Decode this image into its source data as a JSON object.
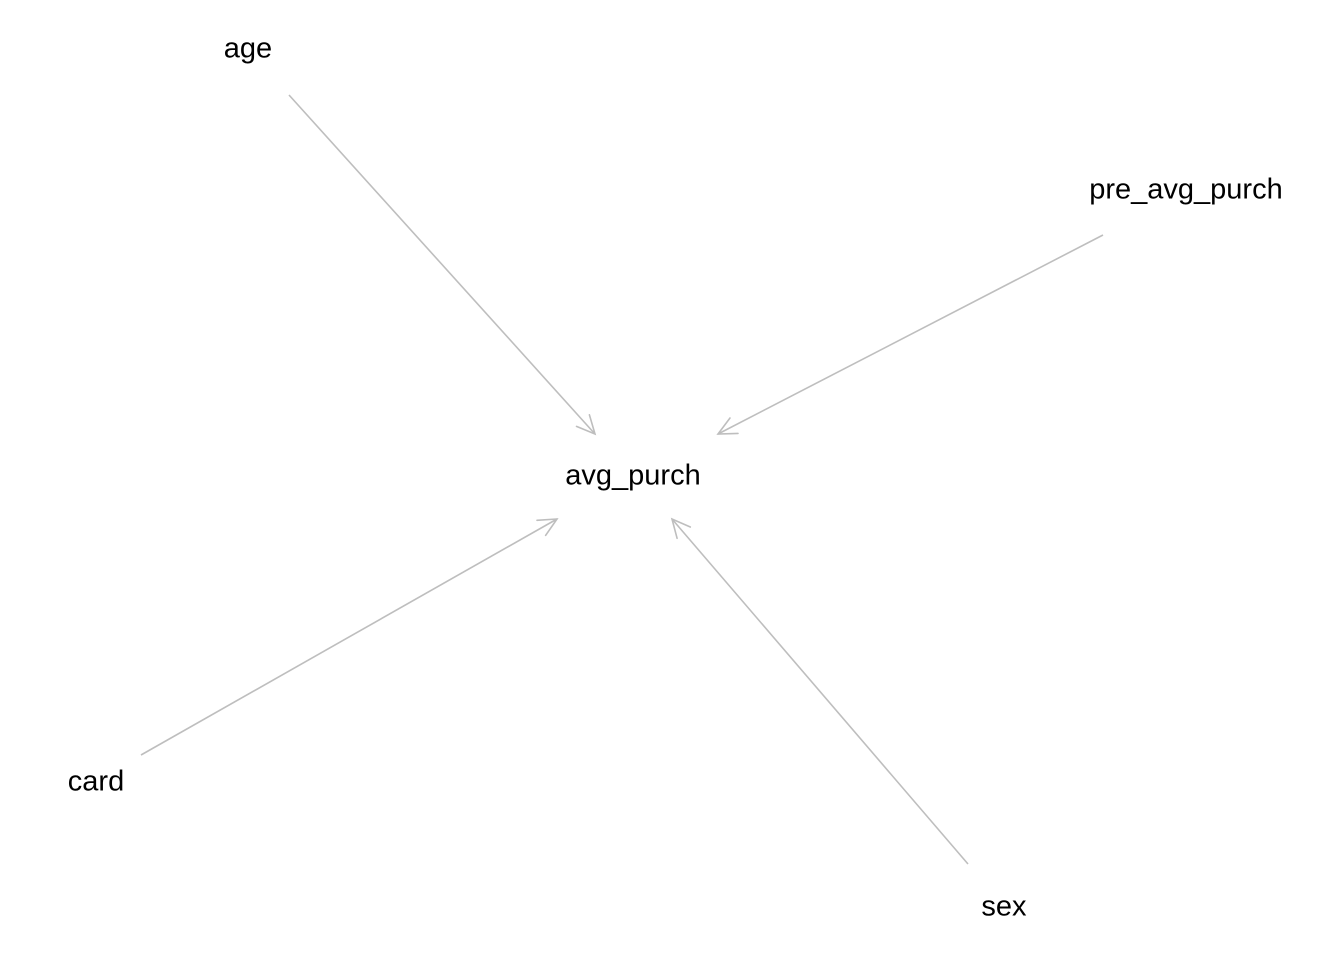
{
  "diagram": {
    "nodes": [
      {
        "id": "age",
        "label": "age"
      },
      {
        "id": "pre_avg_purch",
        "label": "pre_avg_purch"
      },
      {
        "id": "avg_purch",
        "label": "avg_purch"
      },
      {
        "id": "card",
        "label": "card"
      },
      {
        "id": "sex",
        "label": "sex"
      }
    ],
    "edges": [
      {
        "from": "age",
        "to": "avg_purch"
      },
      {
        "from": "pre_avg_purch",
        "to": "avg_purch"
      },
      {
        "from": "card",
        "to": "avg_purch"
      },
      {
        "from": "sex",
        "to": "avg_purch"
      }
    ],
    "colors": {
      "edge": "#bebebe",
      "label": "#000000",
      "background": "#ffffff"
    }
  }
}
